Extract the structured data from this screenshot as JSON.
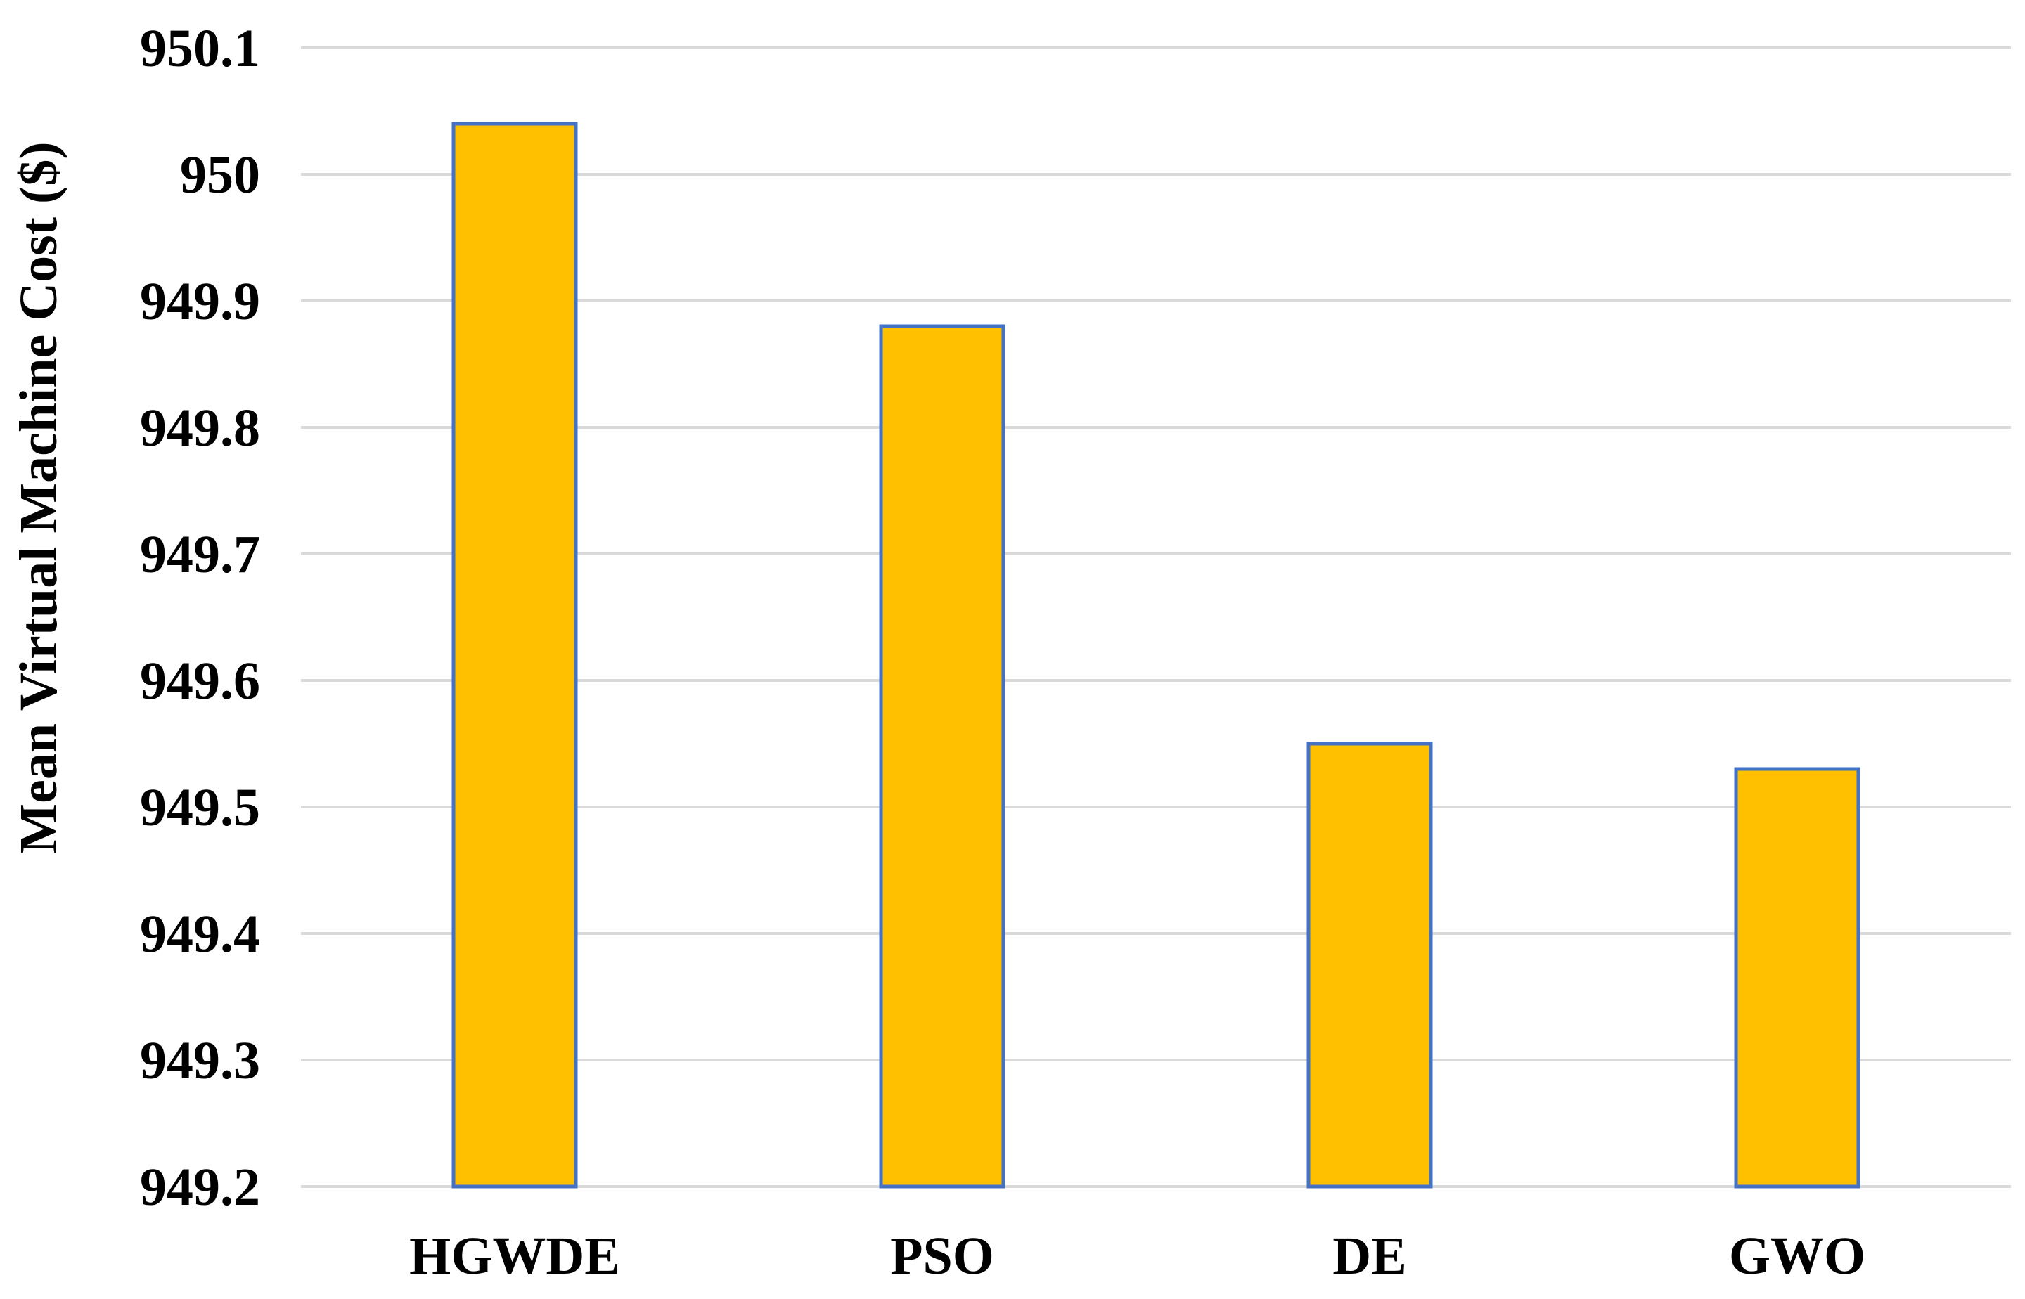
{
  "chart_data": {
    "type": "bar",
    "title": "",
    "xlabel": "",
    "ylabel": "Mean Virtual Machine Cost ($)",
    "categories": [
      "HGWDE",
      "PSO",
      "DE",
      "GWO"
    ],
    "values": [
      950.04,
      949.88,
      949.55,
      949.53
    ],
    "ylim": [
      949.2,
      950.1
    ],
    "yticks": [
      "949.2",
      "949.3",
      "949.4",
      "949.5",
      "949.6",
      "949.7",
      "949.8",
      "949.9",
      "950",
      "950.1"
    ],
    "grid": true,
    "legend": "none",
    "colors": {
      "bar_fill": "#FFC000",
      "bar_stroke": "#4472C4",
      "grid": "#D9D9D9"
    }
  }
}
